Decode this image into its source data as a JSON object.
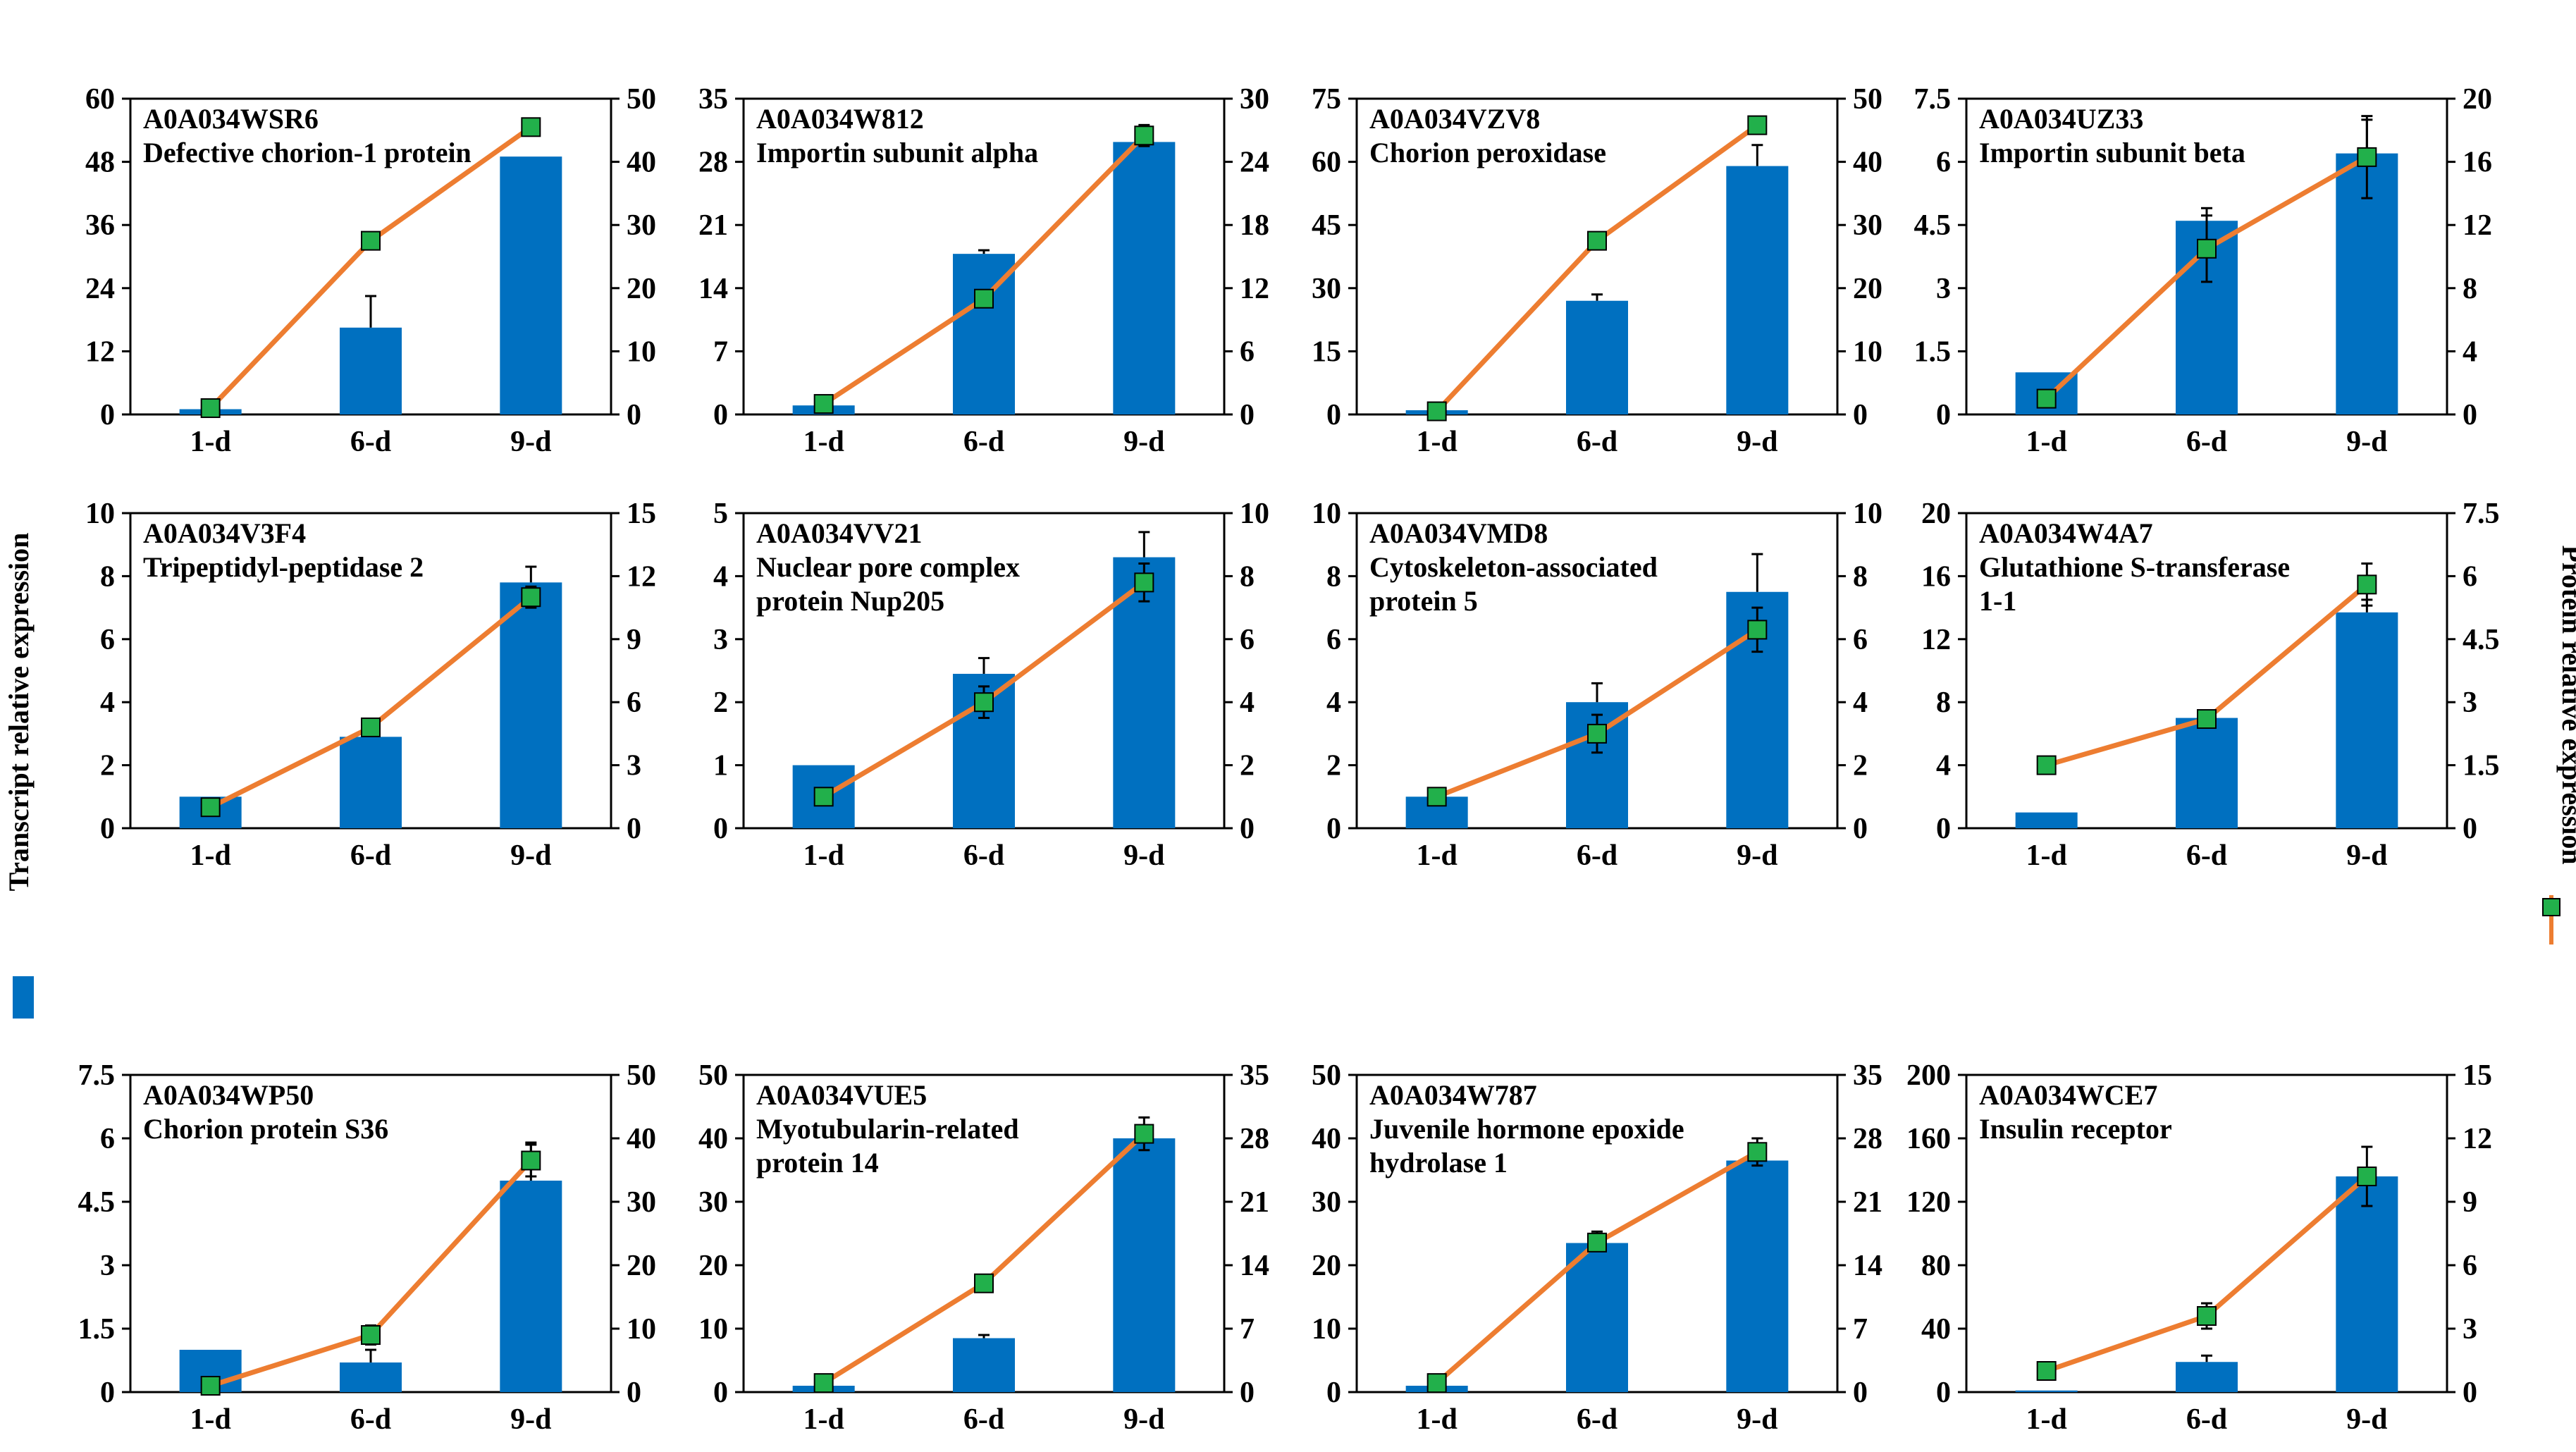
{
  "figure": {
    "left_axis_title": "Transcript relative expression",
    "right_axis_title": "Protein relative expression",
    "bar_color": "#0070C0",
    "line_color": "#ED7D31",
    "marker_color": "#22B04B"
  },
  "chart_data": [
    {
      "type": "bar+line",
      "id": "A0A034WSR6",
      "name": "Defective chorion-1 protein",
      "title_lines": [
        "A0A034WSR6",
        "Defective chorion-1 protein"
      ],
      "categories": [
        "1-d",
        "6-d",
        "9-d"
      ],
      "series": [
        {
          "name": "Transcript relative expression",
          "type": "bar",
          "axis": "left",
          "values": [
            1,
            16.5,
            49
          ],
          "errors": [
            0,
            6,
            0
          ]
        },
        {
          "name": "Protein relative expression",
          "type": "line",
          "axis": "right",
          "values": [
            1,
            27.5,
            45.5
          ],
          "errors": [
            0,
            0,
            0
          ]
        }
      ],
      "left_ylim": [
        0,
        60
      ],
      "left_ticks": [
        "0",
        "12",
        "24",
        "36",
        "48",
        "60"
      ],
      "right_ylim": [
        0,
        50
      ],
      "right_ticks": [
        "0",
        "10",
        "20",
        "30",
        "40",
        "50"
      ]
    },
    {
      "type": "bar+line",
      "id": "A0A034W812",
      "name": "Importin subunit alpha",
      "title_lines": [
        "A0A034W812",
        "Importin subunit alpha"
      ],
      "categories": [
        "1-d",
        "6-d",
        "9-d"
      ],
      "series": [
        {
          "name": "Transcript relative expression",
          "type": "bar",
          "axis": "left",
          "values": [
            1,
            17.8,
            30.2
          ],
          "errors": [
            0,
            0.4,
            0
          ]
        },
        {
          "name": "Protein relative expression",
          "type": "line",
          "axis": "right",
          "values": [
            1,
            11,
            26.5
          ],
          "errors": [
            0,
            0.7,
            1
          ]
        }
      ],
      "left_ylim": [
        0,
        35
      ],
      "left_ticks": [
        "0",
        "7",
        "14",
        "21",
        "28",
        "35"
      ],
      "right_ylim": [
        0,
        30
      ],
      "right_ticks": [
        "0",
        "6",
        "12",
        "18",
        "24",
        "30"
      ]
    },
    {
      "type": "bar+line",
      "id": "A0A034VZV8",
      "name": "Chorion peroxidase",
      "title_lines": [
        "A0A034VZV8",
        "Chorion peroxidase"
      ],
      "categories": [
        "1-d",
        "6-d",
        "9-d"
      ],
      "series": [
        {
          "name": "Transcript relative expression",
          "type": "bar",
          "axis": "left",
          "values": [
            1,
            27,
            59
          ],
          "errors": [
            0,
            1.5,
            5
          ]
        },
        {
          "name": "Protein relative expression",
          "type": "line",
          "axis": "right",
          "values": [
            0.5,
            27.5,
            45.8
          ],
          "errors": [
            0,
            0.6,
            0
          ]
        }
      ],
      "left_ylim": [
        0,
        75
      ],
      "left_ticks": [
        "0",
        "15",
        "30",
        "45",
        "60",
        "75"
      ],
      "right_ylim": [
        0,
        50
      ],
      "right_ticks": [
        "0",
        "10",
        "20",
        "30",
        "40",
        "50"
      ]
    },
    {
      "type": "bar+line",
      "id": "A0A034UZ33",
      "name": "Importin subunit beta",
      "title_lines": [
        "A0A034UZ33",
        "Importin subunit beta"
      ],
      "categories": [
        "1-d",
        "6-d",
        "9-d"
      ],
      "series": [
        {
          "name": "Transcript relative expression",
          "type": "bar",
          "axis": "left",
          "values": [
            1,
            4.6,
            6.2
          ],
          "errors": [
            0,
            0.3,
            0.8
          ]
        },
        {
          "name": "Protein relative expression",
          "type": "line",
          "axis": "right",
          "values": [
            1,
            10.5,
            16.3
          ],
          "errors": [
            0,
            2.1,
            2.6
          ]
        }
      ],
      "left_ylim": [
        0,
        7.5
      ],
      "left_ticks": [
        "0",
        "1.5",
        "3",
        "4.5",
        "6",
        "7.5"
      ],
      "right_ylim": [
        0,
        20
      ],
      "right_ticks": [
        "0",
        "4",
        "8",
        "12",
        "16",
        "20"
      ]
    },
    {
      "type": "bar+line",
      "id": "A0A034V3F4",
      "name": "Tripeptidyl-peptidase 2",
      "title_lines": [
        "A0A034V3F4",
        "Tripeptidyl-peptidase 2"
      ],
      "categories": [
        "1-d",
        "6-d",
        "9-d"
      ],
      "series": [
        {
          "name": "Transcript relative expression",
          "type": "bar",
          "axis": "left",
          "values": [
            1,
            2.9,
            7.8
          ],
          "errors": [
            0,
            0,
            0.5
          ]
        },
        {
          "name": "Protein relative expression",
          "type": "line",
          "axis": "right",
          "values": [
            1,
            4.8,
            11
          ],
          "errors": [
            0,
            0,
            0.5
          ]
        }
      ],
      "left_ylim": [
        0,
        10
      ],
      "left_ticks": [
        "0",
        "2",
        "4",
        "6",
        "8",
        "10"
      ],
      "right_ylim": [
        0,
        15
      ],
      "right_ticks": [
        "0",
        "3",
        "6",
        "9",
        "12",
        "15"
      ]
    },
    {
      "type": "bar+line",
      "id": "A0A034VV21",
      "name": "Nuclear pore complex protein Nup205",
      "title_lines": [
        "A0A034VV21",
        "Nuclear pore complex",
        "protein Nup205"
      ],
      "categories": [
        "1-d",
        "6-d",
        "9-d"
      ],
      "series": [
        {
          "name": "Transcript relative expression",
          "type": "bar",
          "axis": "left",
          "values": [
            1,
            2.45,
            4.3
          ],
          "errors": [
            0,
            0.25,
            0.4
          ]
        },
        {
          "name": "Protein relative expression",
          "type": "line",
          "axis": "right",
          "values": [
            1,
            4,
            7.8
          ],
          "errors": [
            0,
            0.5,
            0.6
          ]
        }
      ],
      "left_ylim": [
        0,
        5
      ],
      "left_ticks": [
        "0",
        "1",
        "2",
        "3",
        "4",
        "5"
      ],
      "right_ylim": [
        0,
        10
      ],
      "right_ticks": [
        "0",
        "2",
        "4",
        "6",
        "8",
        "10"
      ]
    },
    {
      "type": "bar+line",
      "id": "A0A034VMD8",
      "name": "Cytoskeleton-associated protein 5",
      "title_lines": [
        "A0A034VMD8",
        "Cytoskeleton-associated",
        "protein 5"
      ],
      "categories": [
        "1-d",
        "6-d",
        "9-d"
      ],
      "series": [
        {
          "name": "Transcript relative expression",
          "type": "bar",
          "axis": "left",
          "values": [
            1,
            4,
            7.5
          ],
          "errors": [
            0,
            0.6,
            1.2
          ]
        },
        {
          "name": "Protein relative expression",
          "type": "line",
          "axis": "right",
          "values": [
            1,
            3,
            6.3
          ],
          "errors": [
            0,
            0.6,
            0.7
          ]
        }
      ],
      "left_ylim": [
        0,
        10
      ],
      "left_ticks": [
        "0",
        "2",
        "4",
        "6",
        "8",
        "10"
      ],
      "right_ylim": [
        0,
        10
      ],
      "right_ticks": [
        "0",
        "2",
        "4",
        "6",
        "8",
        "10"
      ]
    },
    {
      "type": "bar+line",
      "id": "A0A034W4A7",
      "name": "Glutathione S-transferase 1-1",
      "title_lines": [
        "A0A034W4A7",
        "Glutathione S-transferase",
        "1-1"
      ],
      "categories": [
        "1-d",
        "6-d",
        "9-d"
      ],
      "series": [
        {
          "name": "Transcript relative expression",
          "type": "bar",
          "axis": "left",
          "values": [
            1,
            7,
            13.7
          ],
          "errors": [
            0,
            0,
            0.8
          ]
        },
        {
          "name": "Protein relative expression",
          "type": "line",
          "axis": "right",
          "values": [
            1.5,
            2.6,
            5.8
          ],
          "errors": [
            0,
            0,
            0.5
          ]
        }
      ],
      "left_ylim": [
        0,
        20
      ],
      "left_ticks": [
        "0",
        "4",
        "8",
        "12",
        "16",
        "20"
      ],
      "right_ylim": [
        0,
        7.5
      ],
      "right_ticks": [
        "0",
        "1.5",
        "3",
        "4.5",
        "6",
        "7.5"
      ]
    },
    {
      "type": "bar+line",
      "id": "A0A034WP50",
      "name": "Chorion protein S36",
      "title_lines": [
        "A0A034WP50",
        "Chorion protein S36"
      ],
      "categories": [
        "1-d",
        "6-d",
        "9-d"
      ],
      "series": [
        {
          "name": "Transcript relative expression",
          "type": "bar",
          "axis": "left",
          "values": [
            1,
            0.7,
            5
          ],
          "errors": [
            0,
            0.3,
            0.9
          ]
        },
        {
          "name": "Protein relative expression",
          "type": "line",
          "axis": "right",
          "values": [
            1,
            9,
            36.5
          ],
          "errors": [
            0,
            1.5,
            2.5
          ]
        }
      ],
      "left_ylim": [
        0,
        7.5
      ],
      "left_ticks": [
        "0",
        "1.5",
        "3",
        "4.5",
        "6",
        "7.5"
      ],
      "right_ylim": [
        0,
        50
      ],
      "right_ticks": [
        "0",
        "10",
        "20",
        "30",
        "40",
        "50"
      ]
    },
    {
      "type": "bar+line",
      "id": "A0A034VUE5",
      "name": "Myotubularin-related protein 14",
      "title_lines": [
        "A0A034VUE5",
        "Myotubularin-related",
        "protein 14"
      ],
      "categories": [
        "1-d",
        "6-d",
        "9-d"
      ],
      "series": [
        {
          "name": "Transcript relative expression",
          "type": "bar",
          "axis": "left",
          "values": [
            1,
            8.5,
            40
          ],
          "errors": [
            0,
            0.5,
            0
          ]
        },
        {
          "name": "Protein relative expression",
          "type": "line",
          "axis": "right",
          "values": [
            1,
            12,
            28.5
          ],
          "errors": [
            0,
            0,
            1.8
          ]
        }
      ],
      "left_ylim": [
        0,
        50
      ],
      "left_ticks": [
        "0",
        "10",
        "20",
        "30",
        "40",
        "50"
      ],
      "right_ylim": [
        0,
        35
      ],
      "right_ticks": [
        "0",
        "7",
        "14",
        "21",
        "28",
        "35"
      ]
    },
    {
      "type": "bar+line",
      "id": "A0A034W787",
      "name": "Juvenile hormone epoxide hydrolase 1",
      "title_lines": [
        "A0A034W787",
        "Juvenile hormone epoxide",
        "hydrolase 1"
      ],
      "categories": [
        "1-d",
        "6-d",
        "9-d"
      ],
      "series": [
        {
          "name": "Transcript relative expression",
          "type": "bar",
          "axis": "left",
          "values": [
            1,
            23.5,
            36.5
          ],
          "errors": [
            0,
            1.8,
            0
          ]
        },
        {
          "name": "Protein relative expression",
          "type": "line",
          "axis": "right",
          "values": [
            1,
            16.5,
            26.5
          ],
          "errors": [
            0,
            0,
            1.5
          ]
        }
      ],
      "left_ylim": [
        0,
        50
      ],
      "left_ticks": [
        "0",
        "10",
        "20",
        "30",
        "40",
        "50"
      ],
      "right_ylim": [
        0,
        35
      ],
      "right_ticks": [
        "0",
        "7",
        "14",
        "21",
        "28",
        "35"
      ]
    },
    {
      "type": "bar+line",
      "id": "A0A034WCE7",
      "name": "Insulin receptor",
      "title_lines": [
        "A0A034WCE7",
        "Insulin receptor"
      ],
      "categories": [
        "1-d",
        "6-d",
        "9-d"
      ],
      "series": [
        {
          "name": "Transcript relative expression",
          "type": "bar",
          "axis": "left",
          "values": [
            1,
            19,
            136
          ],
          "errors": [
            0,
            4,
            0
          ]
        },
        {
          "name": "Protein relative expression",
          "type": "line",
          "axis": "right",
          "values": [
            1,
            3.6,
            10.2
          ],
          "errors": [
            0,
            0.6,
            1.4
          ]
        }
      ],
      "left_ylim": [
        0,
        200
      ],
      "left_ticks": [
        "0",
        "40",
        "80",
        "120",
        "160",
        "200"
      ],
      "right_ylim": [
        0,
        15
      ],
      "right_ticks": [
        "0",
        "3",
        "6",
        "9",
        "12",
        "15"
      ]
    }
  ]
}
